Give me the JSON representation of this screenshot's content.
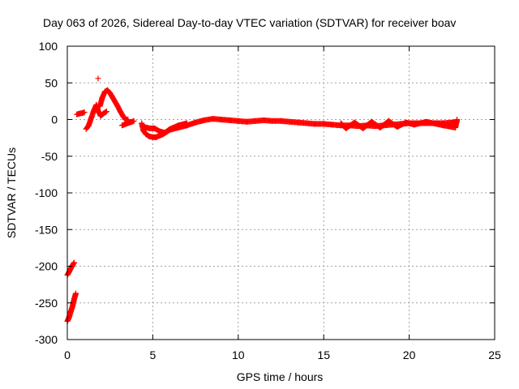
{
  "chart_data": {
    "type": "scatter",
    "title": "Day 063 of 2026, Sidereal Day-to-day VTEC variation (SDTVAR) for receiver boav",
    "xlabel": "GPS time / hours",
    "ylabel": "SDTVAR / TECUs",
    "xlim": [
      0,
      25
    ],
    "ylim": [
      -300,
      100
    ],
    "xticks": [
      0,
      5,
      10,
      15,
      20,
      25
    ],
    "yticks": [
      -300,
      -250,
      -200,
      -150,
      -100,
      -50,
      0,
      50,
      100
    ],
    "grid": true,
    "marker": "+",
    "marker_color": "#ff0000",
    "series": [
      {
        "name": "SDTVAR",
        "segments": [
          [
            [
              0.0,
              -275
            ],
            [
              0.1,
              -270
            ],
            [
              0.2,
              -262
            ],
            [
              0.3,
              -255
            ],
            [
              0.4,
              -245
            ],
            [
              0.5,
              -237
            ]
          ],
          [
            [
              0.0,
              -212
            ],
            [
              0.1,
              -208
            ],
            [
              0.2,
              -203
            ],
            [
              0.3,
              -199
            ],
            [
              0.4,
              -195
            ]
          ],
          [
            [
              0.55,
              7
            ],
            [
              0.7,
              8
            ],
            [
              0.9,
              9
            ],
            [
              1.0,
              10
            ]
          ],
          [
            [
              1.1,
              -13
            ],
            [
              1.25,
              -8
            ],
            [
              1.4,
              2
            ],
            [
              1.55,
              12
            ],
            [
              1.7,
              20
            ],
            [
              1.8,
              12
            ],
            [
              1.95,
              5
            ],
            [
              2.1,
              8
            ],
            [
              2.3,
              11
            ]
          ],
          [
            [
              1.9,
              18
            ],
            [
              2.05,
              30
            ],
            [
              2.2,
              38
            ],
            [
              2.35,
              40
            ],
            [
              2.5,
              36
            ],
            [
              2.65,
              30
            ],
            [
              2.8,
              24
            ],
            [
              2.95,
              18
            ],
            [
              3.1,
              11
            ],
            [
              3.25,
              5
            ],
            [
              3.4,
              0
            ],
            [
              3.55,
              0
            ]
          ],
          [
            [
              1.8,
              56
            ]
          ],
          [
            [
              3.2,
              -8
            ],
            [
              3.9,
              -2
            ]
          ],
          [
            [
              4.35,
              -5
            ],
            [
              4.45,
              -15
            ],
            [
              4.6,
              -20
            ],
            [
              4.8,
              -23
            ],
            [
              5.0,
              -24
            ],
            [
              5.2,
              -24
            ],
            [
              5.4,
              -22
            ],
            [
              5.6,
              -20
            ],
            [
              5.8,
              -17
            ],
            [
              6.0,
              -14
            ],
            [
              6.5,
              -11
            ],
            [
              7.0,
              -8
            ],
            [
              7.5,
              -4
            ],
            [
              8.0,
              -1
            ],
            [
              8.5,
              1
            ],
            [
              9.0,
              0
            ],
            [
              9.5,
              -1
            ],
            [
              10.0,
              -2
            ],
            [
              10.5,
              -3
            ],
            [
              11.0,
              -2
            ],
            [
              11.5,
              -1
            ],
            [
              12.0,
              -2
            ],
            [
              12.5,
              -2
            ],
            [
              13.0,
              -3
            ],
            [
              13.5,
              -4
            ],
            [
              14.0,
              -5
            ],
            [
              14.5,
              -6
            ],
            [
              15.0,
              -6
            ],
            [
              15.5,
              -7
            ],
            [
              16.0,
              -8
            ],
            [
              16.5,
              -8
            ],
            [
              17.0,
              -9
            ],
            [
              17.5,
              -8
            ],
            [
              18.0,
              -9
            ],
            [
              18.5,
              -8
            ],
            [
              19.0,
              -7
            ],
            [
              19.5,
              -6
            ],
            [
              20.0,
              -5
            ],
            [
              20.5,
              -5
            ],
            [
              21.0,
              -5
            ],
            [
              21.5,
              -5
            ],
            [
              22.0,
              -5
            ],
            [
              22.5,
              -4
            ],
            [
              22.8,
              -3
            ]
          ],
          [
            [
              4.5,
              -10
            ],
            [
              4.8,
              -12
            ],
            [
              5.1,
              -12
            ],
            [
              5.4,
              -16
            ],
            [
              5.7,
              -18
            ],
            [
              6.0,
              -13
            ],
            [
              6.5,
              -8
            ],
            [
              7.0,
              -5
            ]
          ],
          [
            [
              16.0,
              -5
            ],
            [
              16.3,
              -12
            ],
            [
              16.8,
              -4
            ],
            [
              17.3,
              -12
            ],
            [
              17.8,
              -3
            ],
            [
              18.3,
              -11
            ],
            [
              18.8,
              -2
            ],
            [
              19.3,
              -10
            ],
            [
              19.8,
              -4
            ],
            [
              20.3,
              -7
            ],
            [
              21.0,
              -3
            ],
            [
              22.0,
              -8
            ],
            [
              22.7,
              -11
            ],
            [
              22.8,
              0
            ]
          ]
        ]
      }
    ]
  }
}
